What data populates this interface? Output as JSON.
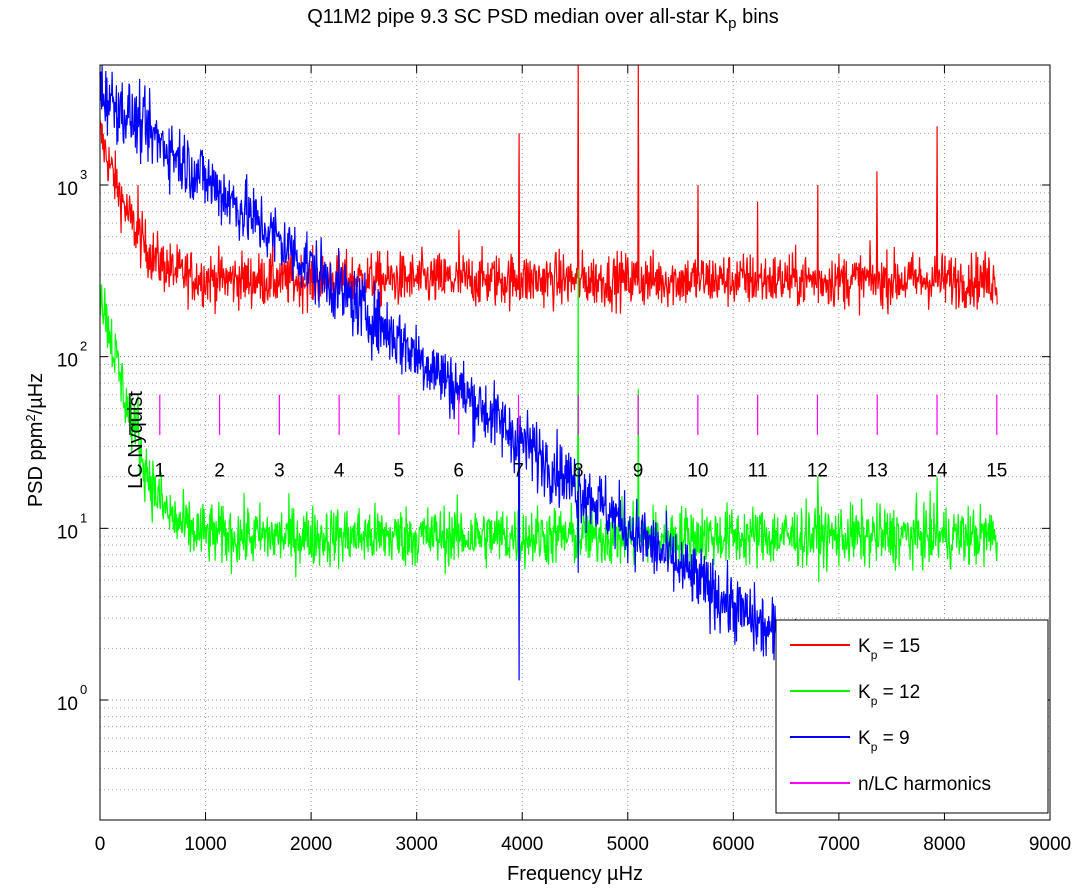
{
  "title": "Q11M2 pipe 9.3 SC PSD median over all-star K",
  "title_sub": "p",
  "title_suffix": " bins",
  "chart_data": {
    "type": "line",
    "xlabel_prefix": "Frequency ",
    "xlabel_unit": "µHz",
    "ylabel": "PSD ppm²/µHz",
    "xlim": [
      0,
      9000
    ],
    "ylim": [
      0.2,
      5000
    ],
    "yscale": "log",
    "grid": true,
    "x_ticks": [
      0,
      1000,
      2000,
      3000,
      4000,
      5000,
      6000,
      7000,
      8000,
      9000
    ],
    "y_ticks": [
      {
        "value": 1,
        "label": "10",
        "exp": "0"
      },
      {
        "value": 10,
        "label": "10",
        "exp": "1"
      },
      {
        "value": 100,
        "label": "10",
        "exp": "2"
      },
      {
        "value": 1000,
        "label": "10",
        "exp": "3"
      }
    ],
    "legend_position": "bottom-right",
    "lc_nyquist_label": "LC Nyquist",
    "lc_nyquist_freq": 283,
    "lc_spacing": 566.4,
    "harmonics": [
      {
        "n": "1"
      },
      {
        "n": "2"
      },
      {
        "n": "3"
      },
      {
        "n": "4"
      },
      {
        "n": "5"
      },
      {
        "n": "6"
      },
      {
        "n": "7"
      },
      {
        "n": "8"
      },
      {
        "n": "9"
      },
      {
        "n": "10"
      },
      {
        "n": "11"
      },
      {
        "n": "12"
      },
      {
        "n": "13"
      },
      {
        "n": "14"
      },
      {
        "n": "15"
      }
    ],
    "harmonic_line_range": [
      35,
      60
    ],
    "harmonic_label_value": 20,
    "series": [
      {
        "name": "K",
        "sub": "p",
        "suffix": " = 15",
        "color": "#ff0000",
        "x_end": 8500,
        "start_value": 2000,
        "floor": 280,
        "decay_freq": 180,
        "noise_dex": 0.08,
        "spikes": [
          [
            360,
            1000
          ],
          [
            3400,
            550
          ],
          [
            3970,
            2000
          ],
          [
            4530,
            5000
          ],
          [
            5100,
            5000
          ],
          [
            5665,
            1000
          ],
          [
            6230,
            800
          ],
          [
            6800,
            1000
          ],
          [
            7360,
            1200
          ],
          [
            7930,
            2200
          ]
        ]
      },
      {
        "name": "K",
        "sub": "p",
        "suffix": " = 12",
        "color": "#00ff00",
        "x_end": 8500,
        "start_value": 250,
        "floor": 9,
        "decay_freq": 150,
        "noise_dex": 0.09,
        "spikes": [
          [
            360,
            60
          ],
          [
            3970,
            40
          ],
          [
            4530,
            320
          ],
          [
            5100,
            65
          ],
          [
            6800,
            20
          ],
          [
            7930,
            20
          ]
        ]
      },
      {
        "name": "K",
        "sub": "p",
        "suffix": " = 9",
        "color": "#0000ff",
        "x_end": 8500,
        "start_value": 3500,
        "floor": 0.48,
        "decay_freq": 850,
        "noise_dex": 0.1,
        "spikes": [
          [
            3970,
            1.3
          ],
          [
            4530,
            5.5
          ]
        ]
      }
    ],
    "harmonics_legend": "n/LC harmonics",
    "harmonics_color": "#ff00ff"
  }
}
